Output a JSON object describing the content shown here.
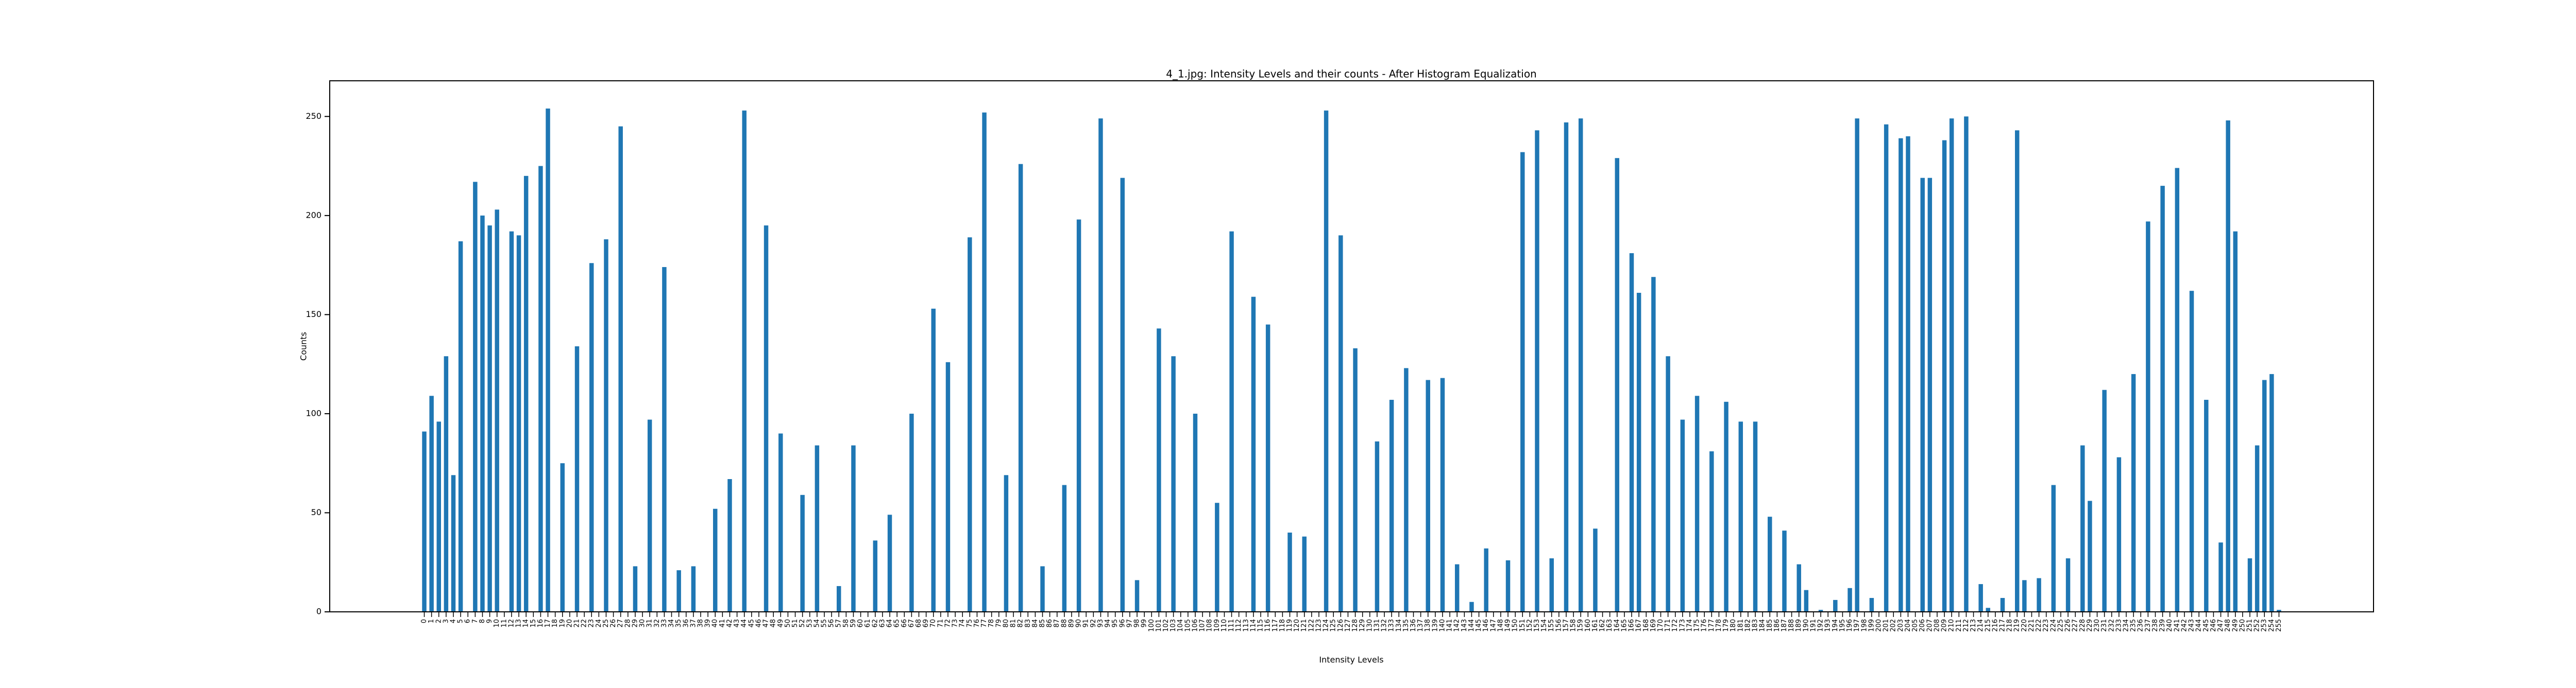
{
  "chart_data": {
    "type": "bar",
    "title": "4_1.jpg: Intensity Levels and their counts - After Histogram Equalization",
    "x_label": "Intensity Levels",
    "y_label": "Counts",
    "color": "#1f77b4",
    "x": [
      0,
      1,
      2,
      3,
      4,
      5,
      6,
      7,
      8,
      9,
      10,
      11,
      12,
      13,
      14,
      15,
      16,
      17,
      18,
      19,
      20,
      21,
      22,
      23,
      24,
      25,
      26,
      27,
      28,
      29,
      30,
      31,
      32,
      33,
      34,
      35,
      36,
      37,
      38,
      39,
      40,
      41,
      42,
      43,
      44,
      45,
      46,
      47,
      48,
      49,
      50,
      51,
      52,
      53,
      54,
      55,
      56,
      57,
      58,
      59,
      60,
      61,
      62,
      63,
      64,
      65,
      66,
      67,
      68,
      69,
      70,
      71,
      72,
      73,
      74,
      75,
      76,
      77,
      78,
      79,
      80,
      81,
      82,
      83,
      84,
      85,
      86,
      87,
      88,
      89,
      90,
      91,
      92,
      93,
      94,
      95,
      96,
      97,
      98,
      99,
      100,
      101,
      102,
      103,
      104,
      105,
      106,
      107,
      108,
      109,
      110,
      111,
      112,
      113,
      114,
      115,
      116,
      117,
      118,
      119,
      120,
      121,
      122,
      123,
      124,
      125,
      126,
      127,
      128,
      129,
      130,
      131,
      132,
      133,
      134,
      135,
      136,
      137,
      138,
      139,
      140,
      141,
      142,
      143,
      144,
      145,
      146,
      147,
      148,
      149,
      150,
      151,
      152,
      153,
      154,
      155,
      156,
      157,
      158,
      159,
      160,
      161,
      162,
      163,
      164,
      165,
      166,
      167,
      168,
      169,
      170,
      171,
      172,
      173,
      174,
      175,
      176,
      177,
      178,
      179,
      180,
      181,
      182,
      183,
      184,
      185,
      186,
      187,
      188,
      189,
      190,
      191,
      192,
      193,
      194,
      195,
      196,
      197,
      198,
      199,
      200,
      201,
      202,
      203,
      204,
      205,
      206,
      207,
      208,
      209,
      210,
      211,
      212,
      213,
      214,
      215,
      216,
      217,
      218,
      219,
      220,
      221,
      222,
      223,
      224,
      225,
      226,
      227,
      228,
      229,
      230,
      231,
      232,
      233,
      234,
      235,
      236,
      237,
      238,
      239,
      240,
      241,
      242,
      243,
      244,
      245,
      246,
      247,
      248,
      249,
      250,
      251,
      252,
      253,
      254,
      255
    ],
    "values": [
      91,
      109,
      96,
      129,
      69,
      187,
      0,
      217,
      200,
      195,
      203,
      0,
      192,
      190,
      220,
      0,
      225,
      254,
      0,
      75,
      0,
      134,
      0,
      176,
      0,
      188,
      0,
      245,
      0,
      23,
      0,
      97,
      0,
      174,
      0,
      21,
      0,
      23,
      0,
      0,
      52,
      0,
      67,
      0,
      253,
      0,
      0,
      195,
      0,
      90,
      0,
      0,
      59,
      0,
      84,
      0,
      0,
      13,
      0,
      84,
      0,
      0,
      36,
      0,
      49,
      0,
      0,
      100,
      0,
      0,
      153,
      0,
      126,
      0,
      0,
      189,
      0,
      252,
      0,
      0,
      69,
      0,
      226,
      0,
      0,
      23,
      0,
      0,
      64,
      0,
      198,
      0,
      0,
      249,
      0,
      0,
      219,
      0,
      16,
      0,
      0,
      143,
      0,
      129,
      0,
      0,
      100,
      0,
      0,
      55,
      0,
      192,
      0,
      0,
      159,
      0,
      145,
      0,
      0,
      40,
      0,
      38,
      0,
      0,
      253,
      0,
      190,
      0,
      133,
      0,
      0,
      86,
      0,
      107,
      0,
      123,
      0,
      0,
      117,
      0,
      118,
      0,
      24,
      0,
      5,
      0,
      32,
      0,
      0,
      26,
      0,
      232,
      0,
      243,
      0,
      27,
      0,
      247,
      0,
      249,
      0,
      42,
      0,
      0,
      229,
      0,
      181,
      161,
      0,
      169,
      0,
      129,
      0,
      97,
      0,
      109,
      0,
      81,
      0,
      106,
      0,
      96,
      0,
      96,
      0,
      48,
      0,
      41,
      0,
      24,
      11,
      0,
      1,
      0,
      6,
      0,
      12,
      249,
      0,
      7,
      0,
      246,
      0,
      239,
      240,
      0,
      219,
      219,
      0,
      238,
      249,
      0,
      250,
      0,
      14,
      2,
      0,
      7,
      0,
      243,
      16,
      0,
      17,
      0,
      64,
      0,
      27,
      0,
      84,
      56,
      0,
      112,
      0,
      78,
      0,
      120,
      0,
      197,
      0,
      215,
      0,
      224,
      0,
      162,
      0,
      107,
      0,
      35,
      248,
      192,
      0,
      27,
      84,
      117,
      120,
      1
    ],
    "xlim": [
      -13,
      268
    ],
    "ylim": [
      0,
      268
    ],
    "yticks": [
      0,
      50,
      100,
      150,
      200,
      250
    ]
  }
}
